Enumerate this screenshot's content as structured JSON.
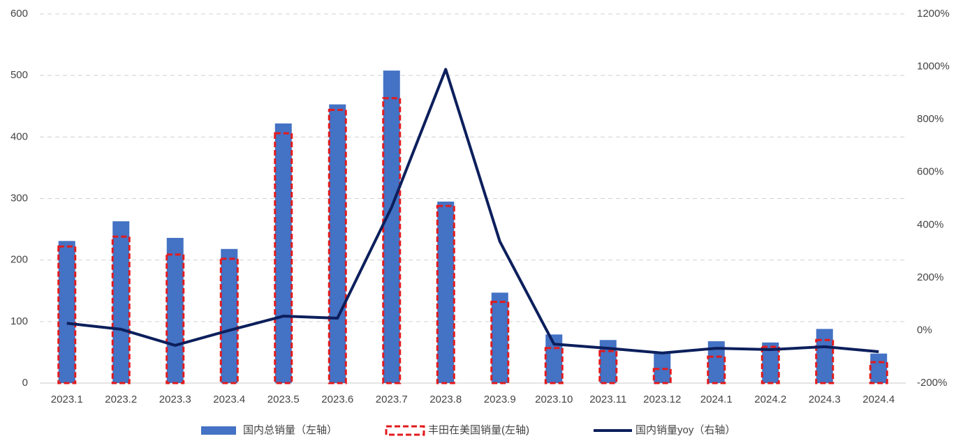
{
  "chart_data": {
    "type": "bar",
    "categories": [
      "2023.1",
      "2023.2",
      "2023.3",
      "2023.4",
      "2023.5",
      "2023.6",
      "2023.7",
      "2023.8",
      "2023.9",
      "2023.10",
      "2023.11",
      "2023.12",
      "2024.1",
      "2024.2",
      "2024.3",
      "2024.4"
    ],
    "series": [
      {
        "name": "国内总销量（左轴）",
        "kind": "bar",
        "color": "#4472c4",
        "values": [
          231,
          263,
          236,
          218,
          422,
          453,
          508,
          295,
          147,
          79,
          70,
          49,
          68,
          66,
          88,
          48
        ]
      },
      {
        "name": "丰田在美国销量(左轴)",
        "kind": "outline",
        "color": "#e31a1c",
        "values": [
          222,
          238,
          209,
          202,
          406,
          444,
          463,
          288,
          132,
          57,
          52,
          23,
          43,
          59,
          70,
          34
        ]
      },
      {
        "name": "国内销量yoy（右轴）",
        "kind": "line",
        "color": "#0c1f5c",
        "axis": "y2",
        "values": [
          27,
          4,
          -57,
          0,
          54,
          46,
          467,
          990,
          337,
          -52,
          -68,
          -86,
          -68,
          -73,
          -62,
          -81
        ]
      }
    ],
    "ylim": [
      0,
      600
    ],
    "yticks": [
      0,
      100,
      200,
      300,
      400,
      500,
      600
    ],
    "y2lim": [
      -200,
      1200
    ],
    "y2ticks": [
      {
        "value": -200,
        "label": "-200%"
      },
      {
        "value": 0,
        "label": "0%"
      },
      {
        "value": 200,
        "label": "200%"
      },
      {
        "value": 400,
        "label": "400%"
      },
      {
        "value": 600,
        "label": "600%"
      },
      {
        "value": 800,
        "label": "800%"
      },
      {
        "value": 1000,
        "label": "1000%"
      },
      {
        "value": 1200,
        "label": "1200%"
      }
    ],
    "grid": true,
    "legend": "bottom"
  }
}
